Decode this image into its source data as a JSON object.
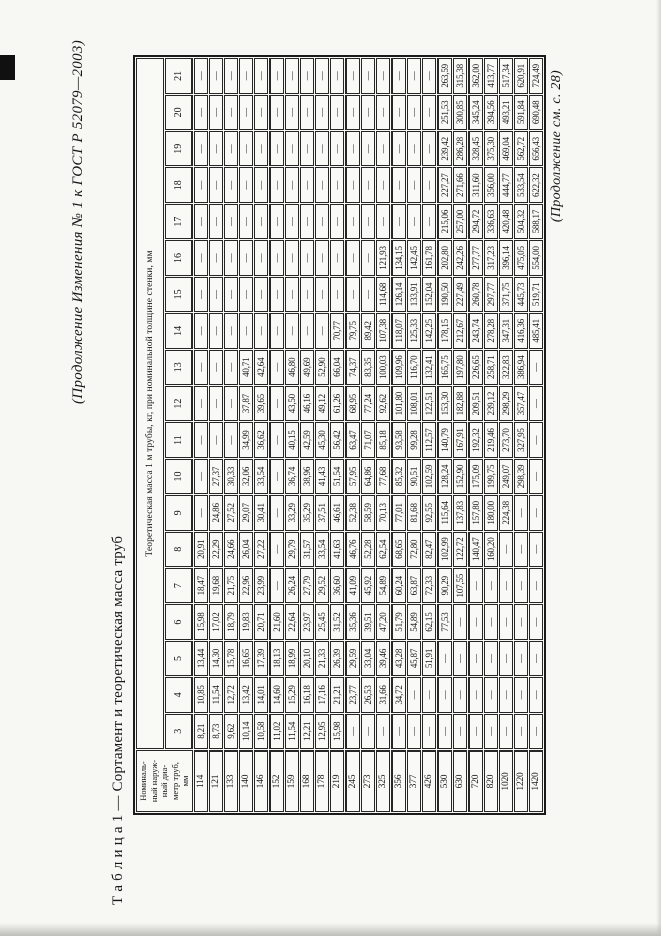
{
  "page": {
    "header_note": "(Продолжение Изменения № 1 к ГОСТ Р 52079—2003)",
    "footer_note": "(Продолжение см. с. 28)"
  },
  "table": {
    "title": "Т а б л и ц а  1 — Сортамент и теоретическая масса труб",
    "col1_header": [
      "Номиналь-",
      "ный наруж-",
      "ный диа-",
      "метр труб,",
      "мм"
    ],
    "span_header": "Теоретическая масса 1 м трубы, кг, при номинальной толщине стенки, мм",
    "thickness_cols": [
      "3",
      "4",
      "5",
      "6",
      "7",
      "8",
      "9",
      "10",
      "11",
      "12",
      "13",
      "14",
      "15",
      "16",
      "17",
      "18",
      "19",
      "20",
      "21"
    ],
    "rows": [
      {
        "d": "114",
        "g": false,
        "v": [
          "8,21",
          "10,85",
          "13,44",
          "15,98",
          "18,47",
          "20,91",
          "—",
          "—",
          "—",
          "—",
          "—",
          "—",
          "—",
          "—",
          "—",
          "—",
          "—",
          "—",
          "—"
        ]
      },
      {
        "d": "121",
        "g": false,
        "v": [
          "8,73",
          "11,54",
          "14,30",
          "17,02",
          "19,68",
          "22,29",
          "24,86",
          "27,37",
          "—",
          "—",
          "—",
          "—",
          "—",
          "—",
          "—",
          "—",
          "—",
          "—",
          "—"
        ]
      },
      {
        "d": "133",
        "g": false,
        "v": [
          "9,62",
          "12,72",
          "15,78",
          "18,79",
          "21,75",
          "24,66",
          "27,52",
          "30,33",
          "—",
          "—",
          "—",
          "—",
          "—",
          "—",
          "—",
          "—",
          "—",
          "—",
          "—"
        ]
      },
      {
        "d": "140",
        "g": false,
        "v": [
          "10,14",
          "13,42",
          "16,65",
          "19,83",
          "22,96",
          "26,04",
          "29,07",
          "32,06",
          "34,99",
          "37,87",
          "40,71",
          "—",
          "—",
          "—",
          "—",
          "—",
          "—",
          "—",
          "—"
        ]
      },
      {
        "d": "146",
        "g": false,
        "v": [
          "10,58",
          "14,01",
          "17,39",
          "20,71",
          "23,99",
          "27,22",
          "30,41",
          "33,54",
          "36,62",
          "39,65",
          "42,64",
          "—",
          "—",
          "—",
          "—",
          "—",
          "—",
          "—",
          "—"
        ]
      },
      {
        "d": "152",
        "g": true,
        "v": [
          "11,02",
          "14,60",
          "18,13",
          "21,60",
          "—",
          "—",
          "—",
          "—",
          "—",
          "—",
          "—",
          "—",
          "—",
          "—",
          "—",
          "—",
          "—",
          "—",
          "—"
        ]
      },
      {
        "d": "159",
        "g": false,
        "v": [
          "11,54",
          "15,29",
          "18,99",
          "22,64",
          "26,24",
          "29,79",
          "33,29",
          "36,74",
          "40,15",
          "43,50",
          "46,80",
          "—",
          "—",
          "—",
          "—",
          "—",
          "—",
          "—",
          "—"
        ]
      },
      {
        "d": "168",
        "g": false,
        "v": [
          "12,21",
          "16,18",
          "20,10",
          "23,97",
          "27,79",
          "31,57",
          "35,29",
          "38,96",
          "42,59",
          "46,16",
          "49,69",
          "—",
          "—",
          "—",
          "—",
          "—",
          "—",
          "—",
          "—"
        ]
      },
      {
        "d": "178",
        "g": false,
        "v": [
          "12,95",
          "17,16",
          "21,33",
          "25,45",
          "29,52",
          "33,54",
          "37,51",
          "41,43",
          "45,30",
          "49,12",
          "52,90",
          "—",
          "—",
          "—",
          "—",
          "—",
          "—",
          "—",
          "—"
        ]
      },
      {
        "d": "219",
        "g": false,
        "v": [
          "15,98",
          "21,21",
          "26,39",
          "31,52",
          "36,60",
          "41,63",
          "46,61",
          "51,54",
          "56,42",
          "61,26",
          "66,04",
          "70,77",
          "—",
          "—",
          "—",
          "—",
          "—",
          "—",
          "—"
        ]
      },
      {
        "d": "245",
        "g": true,
        "v": [
          "—",
          "23,77",
          "29,59",
          "35,36",
          "41,09",
          "46,76",
          "52,38",
          "57,95",
          "63,47",
          "68,95",
          "74,37",
          "79,75",
          "—",
          "—",
          "—",
          "—",
          "—",
          "—",
          "—"
        ]
      },
      {
        "d": "273",
        "g": false,
        "v": [
          "—",
          "26,53",
          "33,04",
          "39,51",
          "45,92",
          "52,28",
          "58,59",
          "64,86",
          "71,07",
          "77,24",
          "83,35",
          "89,42",
          "—",
          "—",
          "—",
          "—",
          "—",
          "—",
          "—"
        ]
      },
      {
        "d": "325",
        "g": false,
        "v": [
          "—",
          "31,66",
          "39,46",
          "47,20",
          "54,89",
          "62,54",
          "70,13",
          "77,68",
          "85,18",
          "92,62",
          "100,03",
          "107,38",
          "114,68",
          "121,93",
          "—",
          "—",
          "—",
          "—",
          "—"
        ]
      },
      {
        "d": "356",
        "g": true,
        "v": [
          "—",
          "34,72",
          "43,28",
          "51,79",
          "60,24",
          "68,65",
          "77,01",
          "85,32",
          "93,58",
          "101,80",
          "109,96",
          "118,07",
          "126,14",
          "134,15",
          "—",
          "—",
          "—",
          "—",
          "—"
        ]
      },
      {
        "d": "377",
        "g": false,
        "v": [
          "—",
          "—",
          "45,87",
          "54,89",
          "63,87",
          "72,80",
          "81,68",
          "90,51",
          "99,28",
          "108,01",
          "116,70",
          "125,33",
          "133,91",
          "142,45",
          "—",
          "—",
          "—",
          "—",
          "—"
        ]
      },
      {
        "d": "426",
        "g": false,
        "v": [
          "—",
          "—",
          "51,91",
          "62,15",
          "72,33",
          "82,47",
          "92,55",
          "102,59",
          "112,57",
          "122,51",
          "132,41",
          "142,25",
          "152,04",
          "161,78",
          "—",
          "—",
          "—",
          "—",
          "—"
        ]
      },
      {
        "d": "530",
        "g": true,
        "v": [
          "—",
          "—",
          "—",
          "77,53",
          "90,29",
          "102,99",
          "115,64",
          "128,24",
          "140,79",
          "153,30",
          "165,75",
          "178,15",
          "190,50",
          "202,80",
          "215,06",
          "227,27",
          "239,42",
          "251,53",
          "263,59"
        ]
      },
      {
        "d": "630",
        "g": false,
        "v": [
          "—",
          "—",
          "—",
          "—",
          "107,55",
          "122,72",
          "137,83",
          "152,90",
          "167,91",
          "182,88",
          "197,80",
          "212,67",
          "227,49",
          "242,26",
          "257,00",
          "271,66",
          "286,28",
          "300,85",
          "315,38"
        ]
      },
      {
        "d": "720",
        "g": true,
        "v": [
          "—",
          "—",
          "—",
          "—",
          "—",
          "140,47",
          "157,80",
          "175,09",
          "192,32",
          "209,51",
          "226,65",
          "243,74",
          "260,78",
          "277,77",
          "294,72",
          "311,60",
          "328,45",
          "345,24",
          "362,00"
        ]
      },
      {
        "d": "820",
        "g": false,
        "v": [
          "—",
          "—",
          "—",
          "—",
          "—",
          "160,20",
          "180,00",
          "199,75",
          "219,46",
          "239,12",
          "258,71",
          "278,28",
          "297,77",
          "317,23",
          "336,63",
          "356,00",
          "375,30",
          "394,56",
          "413,77"
        ]
      },
      {
        "d": "1020",
        "g": false,
        "v": [
          "—",
          "—",
          "—",
          "—",
          "—",
          "—",
          "224,38",
          "249,07",
          "273,70",
          "298,29",
          "322,83",
          "347,31",
          "371,75",
          "396,14",
          "420,48",
          "444,77",
          "469,04",
          "493,21",
          "517,34"
        ]
      },
      {
        "d": "1220",
        "g": false,
        "v": [
          "—",
          "—",
          "—",
          "—",
          "—",
          "—",
          "—",
          "298,39",
          "327,95",
          "357,47",
          "386,94",
          "416,36",
          "445,73",
          "475,05",
          "504,32",
          "533,54",
          "562,72",
          "591,84",
          "620,91"
        ]
      },
      {
        "d": "1420",
        "g": false,
        "v": [
          "—",
          "—",
          "—",
          "—",
          "—",
          "—",
          "—",
          "—",
          "—",
          "—",
          "—",
          "485,41",
          "519,71",
          "554,00",
          "588,17",
          "622,32",
          "656,43",
          "690,48",
          "724,49"
        ]
      }
    ]
  }
}
